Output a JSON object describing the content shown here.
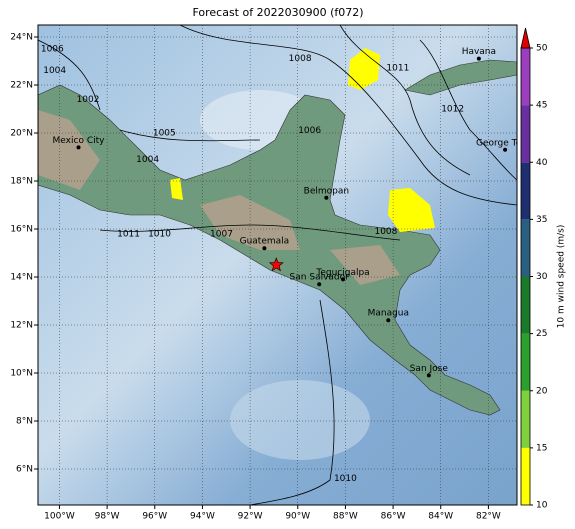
{
  "map": {
    "title": "Forecast of 2022030900 (f072)",
    "xlim": [
      -100.9,
      -80.8
    ],
    "ylim": [
      4.5,
      24.5
    ],
    "xticks": [
      {
        "value": -100,
        "label": "100°W"
      },
      {
        "value": -98,
        "label": "98°W"
      },
      {
        "value": -96,
        "label": "96°W"
      },
      {
        "value": -94,
        "label": "94°W"
      },
      {
        "value": -92,
        "label": "92°W"
      },
      {
        "value": -90,
        "label": "90°W"
      },
      {
        "value": -88,
        "label": "88°W"
      },
      {
        "value": -86,
        "label": "86°W"
      },
      {
        "value": -84,
        "label": "84°W"
      },
      {
        "value": -82,
        "label": "82°W"
      }
    ],
    "yticks": [
      {
        "value": 6,
        "label": "6°N"
      },
      {
        "value": 8,
        "label": "8°N"
      },
      {
        "value": 10,
        "label": "10°N"
      },
      {
        "value": 12,
        "label": "12°N"
      },
      {
        "value": 14,
        "label": "14°N"
      },
      {
        "value": 16,
        "label": "16°N"
      },
      {
        "value": 18,
        "label": "18°N"
      },
      {
        "value": 20,
        "label": "20°N"
      },
      {
        "value": 22,
        "label": "22°N"
      },
      {
        "value": 24,
        "label": "24°N"
      }
    ],
    "grid": true,
    "cities": [
      {
        "name": "Havana",
        "lon": -82.4,
        "lat": 23.1
      },
      {
        "name": "Mexico City",
        "lon": -99.2,
        "lat": 19.4
      },
      {
        "name": "George Town",
        "lon": -81.3,
        "lat": 19.3
      },
      {
        "name": "Belmopan",
        "lon": -88.8,
        "lat": 17.3
      },
      {
        "name": "Guatemala",
        "lon": -91.4,
        "lat": 15.2
      },
      {
        "name": "San Salvador",
        "lon": -89.1,
        "lat": 13.7
      },
      {
        "name": "Tegucigalpa",
        "lon": -88.1,
        "lat": 13.9
      },
      {
        "name": "Managua",
        "lon": -86.2,
        "lat": 12.2
      },
      {
        "name": "San Jose",
        "lon": -84.5,
        "lat": 9.9
      }
    ],
    "marker": {
      "lon": -90.9,
      "lat": 14.5,
      "color": "#ff0000"
    },
    "contour_labels": [
      {
        "value": 1006,
        "lon": -100.3,
        "lat": 23.5
      },
      {
        "value": 1004,
        "lon": -100.2,
        "lat": 22.6
      },
      {
        "value": 1002,
        "lon": -98.8,
        "lat": 21.4
      },
      {
        "value": 1008,
        "lon": -89.9,
        "lat": 23.1
      },
      {
        "value": 1011,
        "lon": -85.8,
        "lat": 22.7
      },
      {
        "value": 1012,
        "lon": -83.5,
        "lat": 21.0
      },
      {
        "value": 1005,
        "lon": -95.6,
        "lat": 20.0
      },
      {
        "value": 1004,
        "lon": -96.3,
        "lat": 18.9
      },
      {
        "value": 1006,
        "lon": -89.5,
        "lat": 20.1
      },
      {
        "value": 1011,
        "lon": -97.1,
        "lat": 15.8
      },
      {
        "value": 1010,
        "lon": -95.8,
        "lat": 15.8
      },
      {
        "value": 1007,
        "lon": -93.2,
        "lat": 15.8
      },
      {
        "value": 1008,
        "lon": -86.3,
        "lat": 15.9
      },
      {
        "value": 1010,
        "lon": -88.0,
        "lat": 5.6
      }
    ],
    "colorbar": {
      "label": "10 m wind speed (m/s)",
      "ticks": [
        10,
        15,
        20,
        25,
        30,
        35,
        40,
        45,
        50
      ],
      "colors": [
        "#ffff00",
        "#7fd13b",
        "#2ca02c",
        "#1a7a2a",
        "#2b5f7f",
        "#1f2f6f",
        "#6a2f9f",
        "#9b3fbf"
      ],
      "extend_color": "#e00000"
    }
  }
}
